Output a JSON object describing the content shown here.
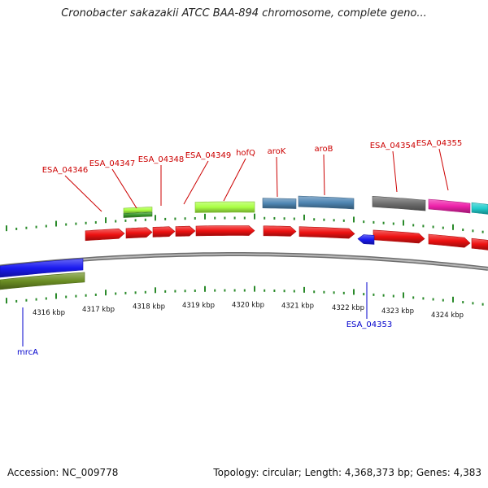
{
  "title": "Cronobacter sakazakii ATCC BAA-894 chromosome, complete geno...",
  "footer": {
    "accession": "Accession: NC_009778",
    "summary": "Topology: circular; Length: 4,368,373 bp; Genes: 4,383"
  },
  "colors": {
    "backbone": "#8c8c8c",
    "tick": "#2a8a2a",
    "label_forward": "#cc0000",
    "label_reverse": "#0000cc",
    "gene_red": "#ee1111",
    "gene_lime": "#aaff44",
    "gene_steel": "#4f86b3",
    "gene_gray": "#6f6f6f",
    "gene_pink": "#ee22aa",
    "gene_cyan": "#22cccc",
    "gene_blue": "#1a1af0",
    "gene_olive": "#6b8e23"
  },
  "scale_labels": [
    "4316 kbp",
    "4317 kbp",
    "4318 kbp",
    "4319 kbp",
    "4320 kbp",
    "4321 kbp",
    "4322 kbp",
    "4323 kbp",
    "4324 kbp"
  ],
  "gene_labels": {
    "forward": [
      "ESA_04346",
      "ESA_04347",
      "ESA_04348",
      "ESA_04349",
      "hofQ",
      "aroK",
      "aroB",
      "ESA_04354",
      "ESA_04355"
    ],
    "reverse": [
      "ESA_04353",
      "mrcA"
    ]
  }
}
